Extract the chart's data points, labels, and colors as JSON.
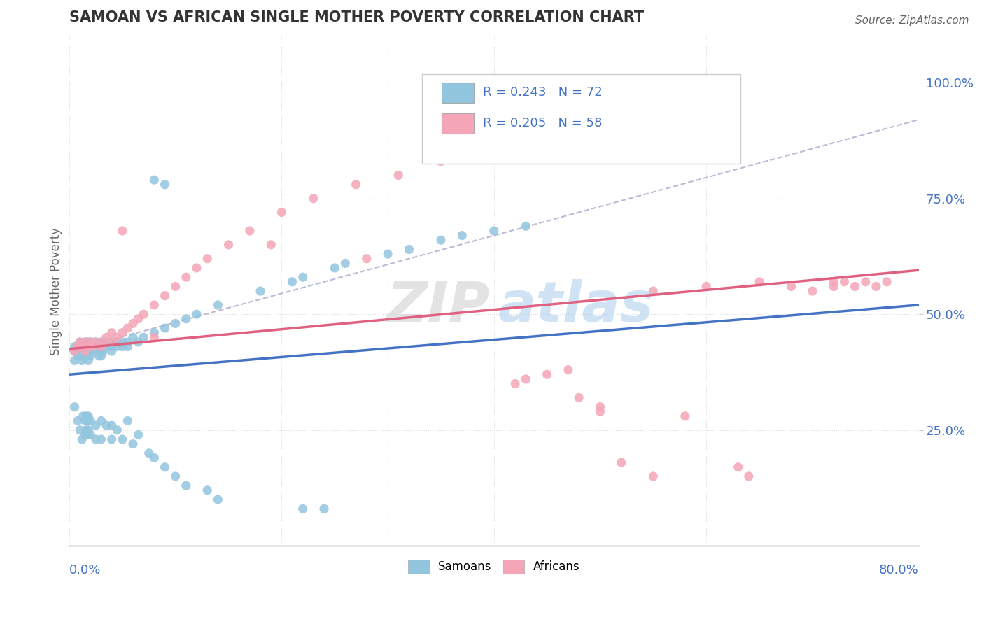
{
  "title": "SAMOAN VS AFRICAN SINGLE MOTHER POVERTY CORRELATION CHART",
  "source": "Source: ZipAtlas.com",
  "ylabel": "Single Mother Poverty",
  "yticks": [
    "25.0%",
    "50.0%",
    "75.0%",
    "100.0%"
  ],
  "ytick_vals": [
    0.25,
    0.5,
    0.75,
    1.0
  ],
  "xlim": [
    0.0,
    0.8
  ],
  "ylim": [
    0.0,
    1.1
  ],
  "legend_R1": "R = 0.243",
  "legend_N1": "N = 72",
  "legend_R2": "R = 0.205",
  "legend_N2": "N = 58",
  "color_samoan": "#92C5DE",
  "color_african": "#F4A6B8",
  "color_samoan_line": "#4472C4",
  "color_african_line": "#E06080",
  "color_dashed": "#AAAAAA",
  "blue_line_x0": 0.0,
  "blue_line_y0": 0.37,
  "blue_line_x1": 0.8,
  "blue_line_y1": 0.52,
  "pink_line_x0": 0.0,
  "pink_line_y0": 0.425,
  "pink_line_x1": 0.8,
  "pink_line_y1": 0.595,
  "dash_line_x0": 0.0,
  "dash_line_y0": 0.42,
  "dash_line_x1": 0.8,
  "dash_line_y1": 0.92,
  "samoans_x": [
    0.005,
    0.005,
    0.005,
    0.008,
    0.008,
    0.008,
    0.01,
    0.01,
    0.01,
    0.01,
    0.012,
    0.012,
    0.013,
    0.013,
    0.015,
    0.015,
    0.015,
    0.016,
    0.016,
    0.017,
    0.017,
    0.018,
    0.018,
    0.018,
    0.02,
    0.02,
    0.02,
    0.02,
    0.022,
    0.022,
    0.025,
    0.025,
    0.025,
    0.028,
    0.028,
    0.03,
    0.03,
    0.03,
    0.03,
    0.032,
    0.032,
    0.035,
    0.035,
    0.04,
    0.04,
    0.04,
    0.045,
    0.045,
    0.05,
    0.05,
    0.055,
    0.055,
    0.06,
    0.065,
    0.07,
    0.08,
    0.09,
    0.1,
    0.11,
    0.12,
    0.14,
    0.18,
    0.21,
    0.22,
    0.25,
    0.26,
    0.3,
    0.32,
    0.35,
    0.37,
    0.4,
    0.43
  ],
  "samoans_y": [
    0.42,
    0.43,
    0.4,
    0.41,
    0.43,
    0.42,
    0.42,
    0.43,
    0.41,
    0.44,
    0.42,
    0.4,
    0.43,
    0.41,
    0.42,
    0.43,
    0.41,
    0.44,
    0.42,
    0.43,
    0.41,
    0.42,
    0.44,
    0.4,
    0.43,
    0.42,
    0.44,
    0.41,
    0.43,
    0.42,
    0.43,
    0.44,
    0.42,
    0.43,
    0.41,
    0.42,
    0.43,
    0.41,
    0.44,
    0.43,
    0.42,
    0.44,
    0.43,
    0.44,
    0.43,
    0.42,
    0.44,
    0.43,
    0.44,
    0.43,
    0.44,
    0.43,
    0.45,
    0.44,
    0.45,
    0.46,
    0.47,
    0.48,
    0.49,
    0.5,
    0.52,
    0.55,
    0.57,
    0.58,
    0.6,
    0.61,
    0.63,
    0.64,
    0.66,
    0.67,
    0.68,
    0.69
  ],
  "africans_x": [
    0.005,
    0.008,
    0.01,
    0.012,
    0.015,
    0.015,
    0.018,
    0.02,
    0.022,
    0.025,
    0.03,
    0.032,
    0.035,
    0.04,
    0.04,
    0.045,
    0.05,
    0.055,
    0.06,
    0.065,
    0.07,
    0.08,
    0.09,
    0.1,
    0.11,
    0.12,
    0.13,
    0.15,
    0.17,
    0.2,
    0.23,
    0.27,
    0.31,
    0.35,
    0.55,
    0.6,
    0.65,
    0.68,
    0.7,
    0.72,
    0.72,
    0.73,
    0.74,
    0.75,
    0.76,
    0.77,
    0.5,
    0.58,
    0.63,
    0.64,
    0.42,
    0.43,
    0.45,
    0.47,
    0.48,
    0.5,
    0.52,
    0.55
  ],
  "africans_y": [
    0.42,
    0.43,
    0.44,
    0.43,
    0.42,
    0.44,
    0.43,
    0.44,
    0.43,
    0.44,
    0.43,
    0.44,
    0.45,
    0.44,
    0.46,
    0.45,
    0.46,
    0.47,
    0.48,
    0.49,
    0.5,
    0.52,
    0.54,
    0.56,
    0.58,
    0.6,
    0.62,
    0.65,
    0.68,
    0.72,
    0.75,
    0.78,
    0.8,
    0.83,
    0.55,
    0.56,
    0.57,
    0.56,
    0.55,
    0.57,
    0.56,
    0.57,
    0.56,
    0.57,
    0.56,
    0.57,
    0.3,
    0.28,
    0.17,
    0.15,
    0.35,
    0.36,
    0.37,
    0.38,
    0.32,
    0.29,
    0.18,
    0.15
  ],
  "samoans_low_x": [
    0.005,
    0.008,
    0.01,
    0.012,
    0.013,
    0.015,
    0.015,
    0.016,
    0.016,
    0.017,
    0.017,
    0.018,
    0.018,
    0.02,
    0.02,
    0.025,
    0.025,
    0.03,
    0.03,
    0.035,
    0.04,
    0.04,
    0.045,
    0.05,
    0.055,
    0.06,
    0.065,
    0.075,
    0.08,
    0.09,
    0.1,
    0.11,
    0.13,
    0.14,
    0.22,
    0.24
  ],
  "samoans_low_y": [
    0.3,
    0.27,
    0.25,
    0.23,
    0.28,
    0.27,
    0.24,
    0.28,
    0.25,
    0.27,
    0.24,
    0.28,
    0.25,
    0.27,
    0.24,
    0.26,
    0.23,
    0.27,
    0.23,
    0.26,
    0.26,
    0.23,
    0.25,
    0.23,
    0.27,
    0.22,
    0.24,
    0.2,
    0.19,
    0.17,
    0.15,
    0.13,
    0.12,
    0.1,
    0.08,
    0.08
  ]
}
